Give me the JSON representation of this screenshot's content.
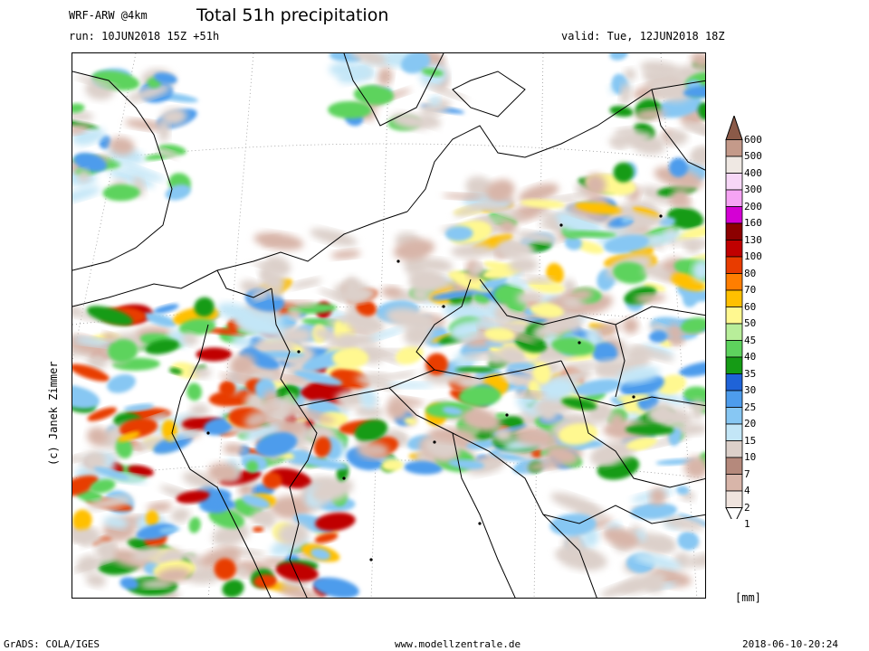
{
  "header": {
    "model": "WRF-ARW @4km",
    "title": "Total 51h precipitation",
    "run": "run: 10JUN2018 15Z +51h",
    "valid": "valid: Tue, 12JUN2018 18Z"
  },
  "credit": "(c) Janek Zimmer",
  "legend": {
    "unit": "[mm]",
    "levels": [
      "600",
      "500",
      "400",
      "300",
      "200",
      "160",
      "130",
      "100",
      "80",
      "70",
      "60",
      "50",
      "45",
      "40",
      "35",
      "30",
      "25",
      "20",
      "15",
      "10",
      "7",
      "4",
      "2",
      "1"
    ],
    "colors": [
      "#8b5a48",
      "#c49a8a",
      "#efe8e3",
      "#f7d7f7",
      "#f6a4f4",
      "#d400d4",
      "#8c0000",
      "#c00000",
      "#e83c00",
      "#ff7e00",
      "#ffc000",
      "#fff890",
      "#b8ee9a",
      "#5dd35d",
      "#159b15",
      "#1f63d8",
      "#4d9cec",
      "#87c7f3",
      "#c3e6f7",
      "#dcd0ca",
      "#b5897c",
      "#d8b5a9",
      "#f0e4de",
      "#ffffff"
    ]
  },
  "footer": {
    "grads": "GrADS: COLA/IGES",
    "site": "www.modellzentrale.de",
    "timestamp": "2018-06-10-20:24"
  }
}
